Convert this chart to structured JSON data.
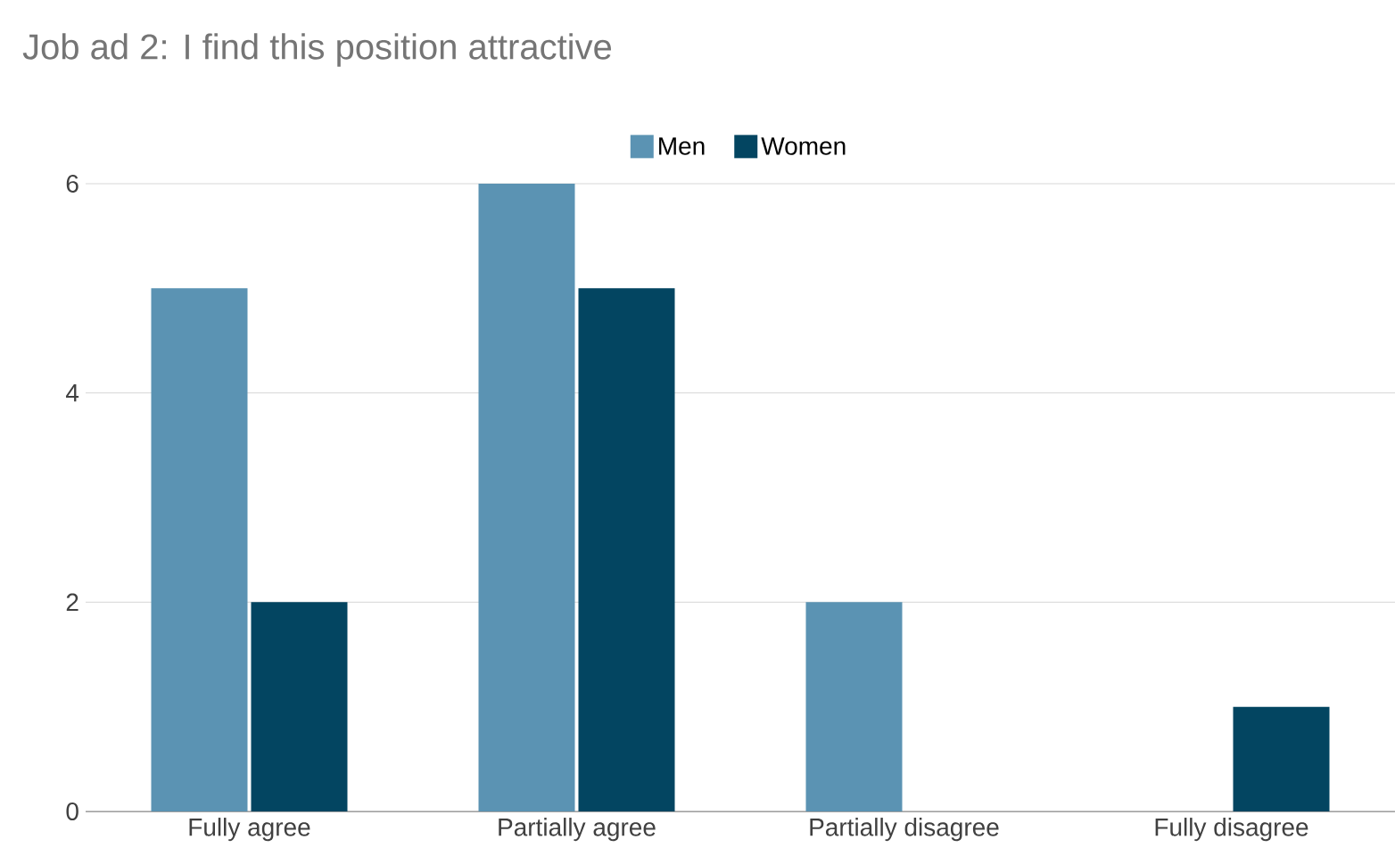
{
  "chart_data": {
    "type": "bar",
    "title": "Job ad 2: I find this position attractive",
    "categories": [
      "Fully agree",
      "Partially agree",
      "Partially disagree",
      "Fully disagree"
    ],
    "series": [
      {
        "name": "Men",
        "color": "#5b93b3",
        "values": [
          5,
          6,
          2,
          0
        ]
      },
      {
        "name": "Women",
        "color": "#034561",
        "values": [
          2,
          5,
          0,
          1
        ]
      }
    ],
    "ylim": [
      0,
      6
    ],
    "yticks": [
      0,
      2,
      4,
      6
    ],
    "grid": "y",
    "legend": "top"
  }
}
